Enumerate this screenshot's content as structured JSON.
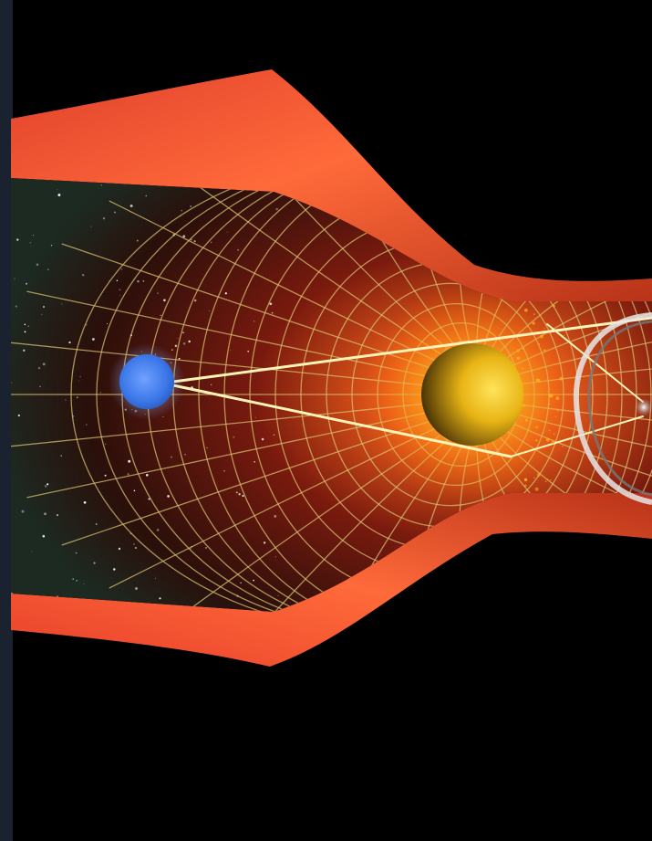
{
  "colors": {
    "background": "#000000",
    "sheet_light": "#ff6a3d",
    "sheet_mid": "#e0482c",
    "sheet_dark": "#7a1a12",
    "grid": "#d8c070",
    "lens_body": "#f2c81e",
    "lens_glow": "#ffd84a",
    "observer": "#4a86f0",
    "observer_glow": "#a9c8ff",
    "light_path": "#fff4b8",
    "ring": "#d9d9d9",
    "starfield": "#2a3a30"
  },
  "objects": {
    "observer": "blue-observer-sphere",
    "lens": "yellow-lens-sphere",
    "source": "distant-galaxy",
    "ring": "einstein-ring-arc",
    "spacetime": "curved-spacetime-sheet"
  }
}
